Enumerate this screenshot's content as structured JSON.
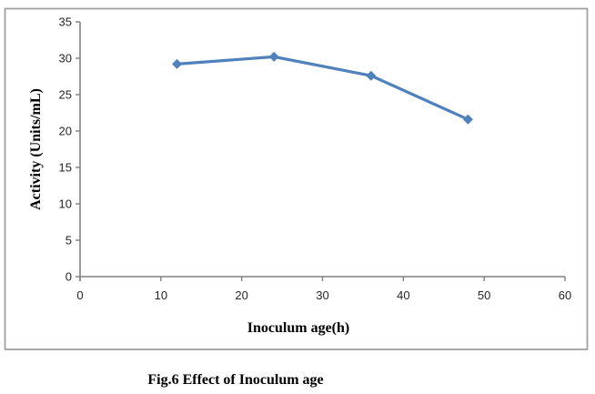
{
  "figure": {
    "caption": "Fig.6 Effect of Inoculum age"
  },
  "chart_data": {
    "type": "line",
    "title": "",
    "xlabel": "Inoculum age(h)",
    "ylabel": "Activity (Units/mL)",
    "series": [
      {
        "name": "Activity",
        "x": [
          12,
          24,
          36,
          48
        ],
        "y": [
          29.2,
          30.2,
          27.6,
          21.6
        ]
      }
    ],
    "xlim": [
      0,
      60
    ],
    "ylim": [
      0,
      35
    ],
    "xticks": [
      0,
      10,
      20,
      30,
      40,
      50,
      60
    ],
    "yticks": [
      0,
      5,
      10,
      15,
      20,
      25,
      30,
      35
    ],
    "grid": false,
    "legend_position": "none",
    "marker": "diamond",
    "colors": {
      "series": "#4F81BD",
      "axis": "#808080",
      "frame_border": "#A0A0A0",
      "tick_label": "#262626",
      "title_text": "#000000"
    }
  }
}
